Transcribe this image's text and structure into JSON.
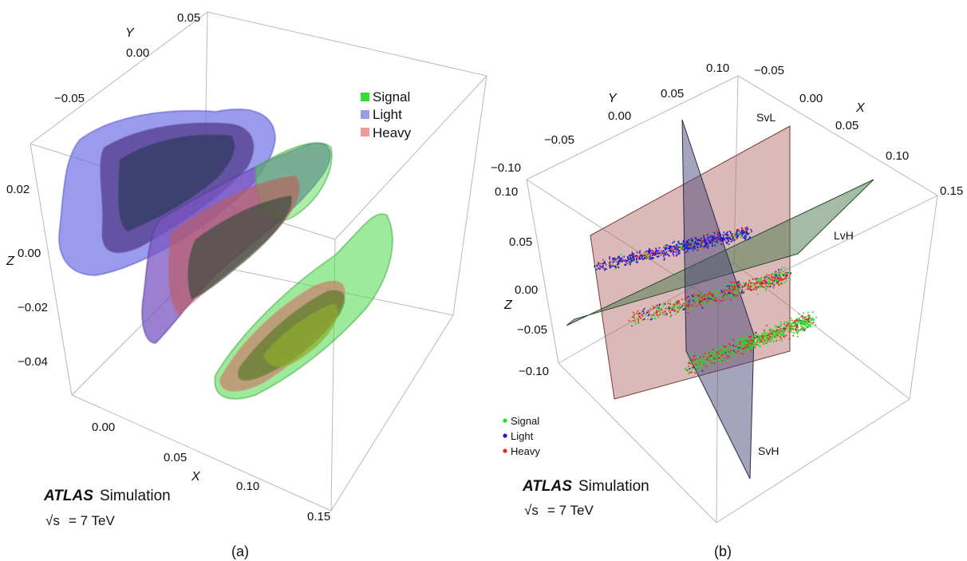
{
  "chart_data": [
    {
      "type": "scatter",
      "panel_label": "(a)",
      "render": "3d-isosurface",
      "axes": {
        "x": {
          "label": "X",
          "ticks": [
            "0.00",
            "0.05",
            "0.10",
            "0.15"
          ]
        },
        "y": {
          "label": "Y",
          "ticks": [
            "0.05",
            "0.00",
            "−0.05"
          ]
        },
        "z": {
          "label": "Z",
          "ticks": [
            "0.02",
            "0.00",
            "−0.02",
            "−0.04"
          ]
        }
      },
      "legend": {
        "placement": "top-right",
        "entries": [
          {
            "name": "Signal",
            "color": "#33dd33"
          },
          {
            "name": "Light",
            "color": "#9a9ae8"
          },
          {
            "name": "Heavy",
            "color": "#ee9a9a"
          }
        ]
      },
      "series": [
        {
          "name": "Light",
          "color": "#6f6fe0",
          "shape": "blob"
        },
        {
          "name": "Heavy",
          "color": "#d96a6a",
          "shape": "blob"
        },
        {
          "name": "Signal",
          "color": "#55dd55",
          "shape": "blob"
        }
      ],
      "experiment": {
        "name": "ATLAS",
        "label": "Simulation",
        "energy_text": "= 7 TeV",
        "sqrt_symbol": "√s"
      }
    },
    {
      "type": "scatter",
      "panel_label": "(b)",
      "render": "3d-points-with-planes",
      "axes": {
        "x": {
          "label": "X",
          "ticks": [
            "−0.05",
            "0.00",
            "0.05",
            "0.10",
            "0.15"
          ]
        },
        "y": {
          "label": "Y",
          "ticks": [
            "0.10",
            "0.05",
            "0.00",
            "−0.05",
            "−0.10"
          ]
        },
        "z": {
          "label": "Z",
          "ticks": [
            "0.10",
            "0.05",
            "0.00",
            "−0.05",
            "−0.10"
          ]
        }
      },
      "planes": [
        {
          "name": "SvL",
          "color": "#b06464"
        },
        {
          "name": "LvH",
          "color": "#4a7a4a"
        },
        {
          "name": "SvH",
          "color": "#4a4a7a"
        }
      ],
      "legend": {
        "placement": "bottom-left",
        "entries": [
          {
            "name": "Signal",
            "color": "#22dd22"
          },
          {
            "name": "Light",
            "color": "#1a1acc"
          },
          {
            "name": "Heavy",
            "color": "#ee2222"
          }
        ]
      },
      "experiment": {
        "name": "ATLAS",
        "label": "Simulation",
        "energy_text": "= 7 TeV",
        "sqrt_symbol": "√s"
      }
    }
  ]
}
